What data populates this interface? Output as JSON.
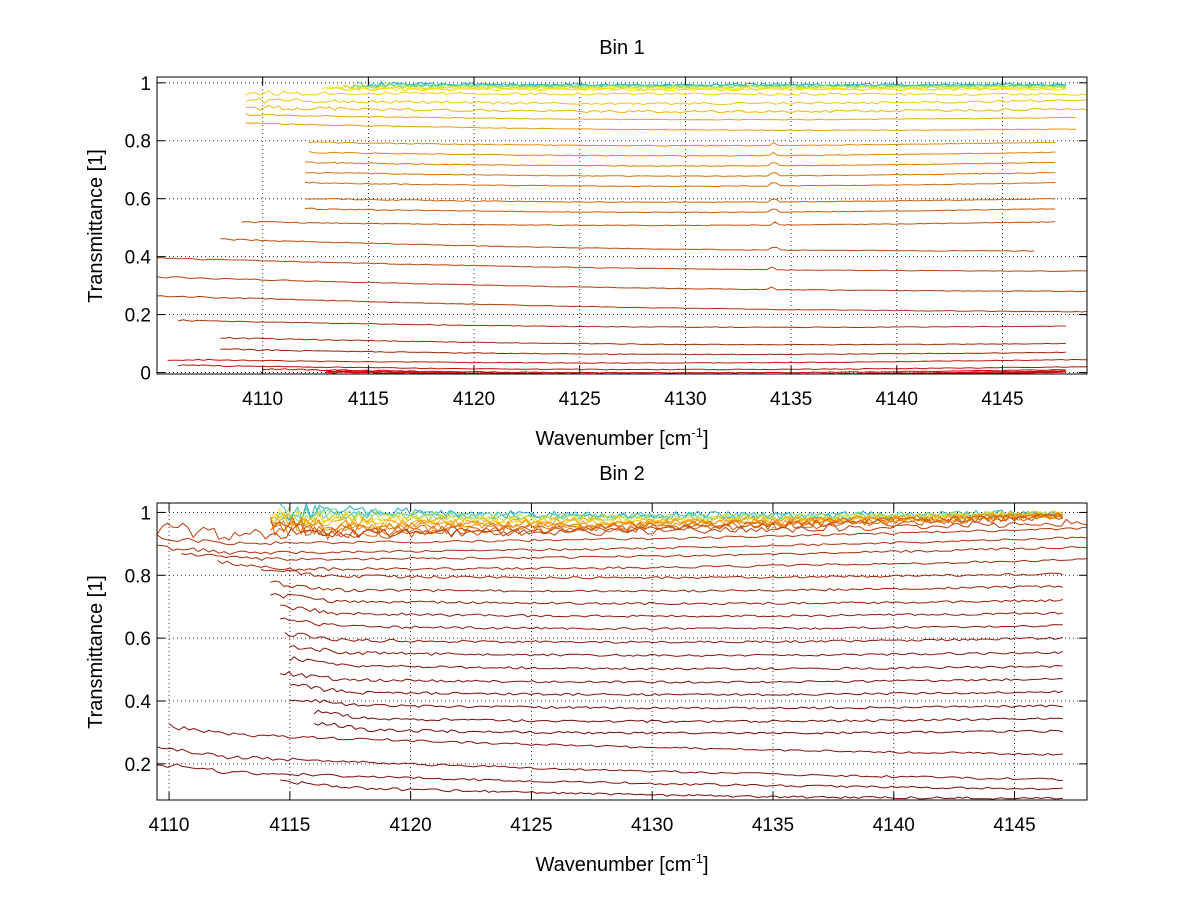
{
  "chart_data": [
    {
      "type": "line",
      "title": "Bin 1",
      "xlabel": "Wavenumber [cm",
      "xlabel_sup": "-1",
      "xlabel_end": "]",
      "ylabel": "Transmittance [1]",
      "xlim": [
        4105,
        4149
      ],
      "ylim": [
        -0.005,
        1.02
      ],
      "xticks": [
        4110,
        4115,
        4120,
        4125,
        4130,
        4135,
        4140,
        4145
      ],
      "yticks": [
        0,
        0.2,
        0.4,
        0.6,
        0.8,
        1
      ],
      "ytick_labels": [
        "0",
        "0.2",
        "0.4",
        "0.6",
        "0.8",
        "1"
      ],
      "grid": true,
      "curve_shape": "flat",
      "noise_scale": 0.0012,
      "spike_at": 4134.2,
      "series": [
        {
          "x_start": 4114.5,
          "x_end": 4148,
          "y_left": 0.995,
          "y_right": 0.995,
          "color": "#1fa9d6"
        },
        {
          "x_start": 4114.5,
          "x_end": 4148,
          "y_left": 0.993,
          "y_right": 0.993,
          "color": "#22c8b8"
        },
        {
          "x_start": 4114.2,
          "x_end": 4148,
          "y_left": 0.99,
          "y_right": 0.99,
          "color": "#5fd678"
        },
        {
          "x_start": 4113.8,
          "x_end": 4148,
          "y_left": 0.987,
          "y_right": 0.987,
          "color": "#a6e04a"
        },
        {
          "x_start": 4113.5,
          "x_end": 4148,
          "y_left": 0.984,
          "y_right": 0.984,
          "color": "#d8e832"
        },
        {
          "x_start": 4113.0,
          "x_end": 4148,
          "y_left": 0.981,
          "y_right": 0.981,
          "color": "#f2ea1e"
        },
        {
          "x_start": 4112.8,
          "x_end": 4148,
          "y_left": 0.978,
          "y_right": 0.978,
          "color": "#f5de16"
        },
        {
          "x_start": 4109.2,
          "x_end": 4149,
          "y_left": 0.965,
          "y_right": 0.96,
          "color": "#f7cd12"
        },
        {
          "x_start": 4109.2,
          "x_end": 4149,
          "y_left": 0.94,
          "y_right": 0.94,
          "color": "#f5c010"
        },
        {
          "x_start": 4109.2,
          "x_end": 4149,
          "y_left": 0.915,
          "y_right": 0.91,
          "color": "#f2b20e"
        },
        {
          "x_start": 4109.2,
          "x_end": 4148.5,
          "y_left": 0.89,
          "y_right": 0.88,
          "color": "#efa50c"
        },
        {
          "x_start": 4109.2,
          "x_end": 4148.5,
          "y_left": 0.86,
          "y_right": 0.84,
          "color": "#eb980b"
        },
        {
          "x_start": 4112.2,
          "x_end": 4147.5,
          "y_left": 0.795,
          "y_right": 0.795,
          "color": "#e68d0a"
        },
        {
          "x_start": 4112.2,
          "x_end": 4147.5,
          "y_left": 0.76,
          "y_right": 0.76,
          "color": "#e18309"
        },
        {
          "x_start": 4112.0,
          "x_end": 4147.5,
          "y_left": 0.725,
          "y_right": 0.725,
          "color": "#dc7a08"
        },
        {
          "x_start": 4112.0,
          "x_end": 4147.5,
          "y_left": 0.69,
          "y_right": 0.69,
          "color": "#d77208"
        },
        {
          "x_start": 4112.0,
          "x_end": 4147.5,
          "y_left": 0.655,
          "y_right": 0.655,
          "color": "#d26a08"
        },
        {
          "x_start": 4112.0,
          "x_end": 4147.5,
          "y_left": 0.6,
          "y_right": 0.6,
          "color": "#cd6208"
        },
        {
          "x_start": 4112.0,
          "x_end": 4147.5,
          "y_left": 0.565,
          "y_right": 0.565,
          "color": "#c85a08"
        },
        {
          "x_start": 4109.0,
          "x_end": 4147.5,
          "y_left": 0.52,
          "y_right": 0.52,
          "color": "#c35308"
        },
        {
          "x_start": 4108.0,
          "x_end": 4146.5,
          "y_left": 0.46,
          "y_right": 0.42,
          "color": "#be4c08"
        },
        {
          "x_start": 4105.0,
          "x_end": 4149,
          "y_left": 0.395,
          "y_right": 0.35,
          "color": "#b84508"
        },
        {
          "x_start": 4105.0,
          "x_end": 4149,
          "y_left": 0.33,
          "y_right": 0.28,
          "color": "#b33e08"
        },
        {
          "x_start": 4105.0,
          "x_end": 4149,
          "y_left": 0.265,
          "y_right": 0.21,
          "color": "#ae3808"
        },
        {
          "x_start": 4106.0,
          "x_end": 4148,
          "y_left": 0.18,
          "y_right": 0.16,
          "color": "#a83208"
        },
        {
          "x_start": 4108.0,
          "x_end": 4148,
          "y_left": 0.12,
          "y_right": 0.1,
          "color": "#a22c08"
        },
        {
          "x_start": 4108.0,
          "x_end": 4148,
          "y_left": 0.08,
          "y_right": 0.07,
          "color": "#9c2608"
        },
        {
          "x_start": 4105.5,
          "x_end": 4149,
          "y_left": 0.045,
          "y_right": 0.045,
          "color": "#b81a0a"
        },
        {
          "x_start": 4106.0,
          "x_end": 4149,
          "y_left": 0.025,
          "y_right": 0.02,
          "color": "#c0120a"
        },
        {
          "x_start": 4110.0,
          "x_end": 4148,
          "y_left": 0.012,
          "y_right": 0.01,
          "color": "#c80c0a"
        },
        {
          "x_start": 4113.0,
          "x_end": 4148,
          "y_left": 0.006,
          "y_right": 0.006,
          "color": "#cc0808"
        },
        {
          "x_start": 4113.0,
          "x_end": 4148,
          "y_left": 0.003,
          "y_right": 0.003,
          "color": "#cf0606"
        },
        {
          "x_start": 4113.0,
          "x_end": 4148,
          "y_left": 0.001,
          "y_right": 0.001,
          "color": "#d20404"
        }
      ]
    },
    {
      "type": "line",
      "title": "Bin 2",
      "xlabel": "Wavenumber [cm",
      "xlabel_sup": "-1",
      "xlabel_end": "]",
      "ylabel": "Transmittance [1]",
      "xlim": [
        4109.5,
        4148
      ],
      "ylim": [
        0.085,
        1.03
      ],
      "xticks": [
        4110,
        4115,
        4120,
        4125,
        4130,
        4135,
        4140,
        4145
      ],
      "yticks": [
        0.2,
        0.4,
        0.6,
        0.8,
        1
      ],
      "ytick_labels": [
        "0.2",
        "0.4",
        "0.6",
        "0.8",
        "1"
      ],
      "grid": true,
      "curve_shape": "bowl",
      "noise_scale": 0.0035,
      "spike_at": 0,
      "series": [
        {
          "x_start": 4114.6,
          "x_end": 4147,
          "y_left": 1.005,
          "y_right": 0.998,
          "color": "#1fa9d6"
        },
        {
          "x_start": 4114.6,
          "x_end": 4147,
          "y_left": 1.0,
          "y_right": 0.997,
          "color": "#3cc0c2"
        },
        {
          "x_start": 4114.4,
          "x_end": 4147,
          "y_left": 0.995,
          "y_right": 0.996,
          "color": "#72d490"
        },
        {
          "x_start": 4114.4,
          "x_end": 4147,
          "y_left": 0.99,
          "y_right": 0.995,
          "color": "#b6e05a"
        },
        {
          "x_start": 4114.2,
          "x_end": 4147,
          "y_left": 0.985,
          "y_right": 0.994,
          "color": "#eede2a"
        },
        {
          "x_start": 4114.2,
          "x_end": 4147,
          "y_left": 0.978,
          "y_right": 0.993,
          "color": "#f8c418"
        },
        {
          "x_start": 4114.2,
          "x_end": 4147,
          "y_left": 0.97,
          "y_right": 0.992,
          "color": "#f6aa12"
        },
        {
          "x_start": 4114.2,
          "x_end": 4147,
          "y_left": 0.962,
          "y_right": 0.991,
          "color": "#f2960e"
        },
        {
          "x_start": 4114.2,
          "x_end": 4147,
          "y_left": 0.954,
          "y_right": 0.99,
          "color": "#ea840c"
        },
        {
          "x_start": 4114.2,
          "x_end": 4147,
          "y_left": 0.946,
          "y_right": 0.989,
          "color": "#e0720a"
        },
        {
          "x_start": 4114.2,
          "x_end": 4147,
          "y_left": 0.938,
          "y_right": 0.988,
          "color": "#d56208"
        },
        {
          "x_start": 4114.2,
          "x_end": 4147,
          "y_left": 0.93,
          "y_right": 0.986,
          "color": "#c95406"
        },
        {
          "x_start": 4109.5,
          "x_end": 4148,
          "y_left": 0.93,
          "y_right": 0.97,
          "color": "#bf3a08"
        },
        {
          "x_start": 4109.5,
          "x_end": 4148,
          "y_left": 0.9,
          "y_right": 0.95,
          "color": "#b83408"
        },
        {
          "x_start": 4109.5,
          "x_end": 4148,
          "y_left": 0.87,
          "y_right": 0.92,
          "color": "#b22e08"
        },
        {
          "x_start": 4110.5,
          "x_end": 4148,
          "y_left": 0.85,
          "y_right": 0.89,
          "color": "#ac2a08"
        },
        {
          "x_start": 4112.0,
          "x_end": 4148,
          "y_left": 0.82,
          "y_right": 0.85,
          "color": "#a82608"
        },
        {
          "x_start": 4113.8,
          "x_end": 4147,
          "y_left": 0.8,
          "y_right": 0.805,
          "color": "#a42208"
        },
        {
          "x_start": 4114.2,
          "x_end": 4147,
          "y_left": 0.755,
          "y_right": 0.765,
          "color": "#a01f08"
        },
        {
          "x_start": 4114.2,
          "x_end": 4147,
          "y_left": 0.72,
          "y_right": 0.72,
          "color": "#9c1c08"
        },
        {
          "x_start": 4114.6,
          "x_end": 4147,
          "y_left": 0.68,
          "y_right": 0.68,
          "color": "#981a08"
        },
        {
          "x_start": 4114.6,
          "x_end": 4147,
          "y_left": 0.64,
          "y_right": 0.64,
          "color": "#941808"
        },
        {
          "x_start": 4114.8,
          "x_end": 4147,
          "y_left": 0.595,
          "y_right": 0.6,
          "color": "#901608"
        },
        {
          "x_start": 4115.0,
          "x_end": 4147,
          "y_left": 0.555,
          "y_right": 0.555,
          "color": "#8c1408"
        },
        {
          "x_start": 4115.0,
          "x_end": 4147,
          "y_left": 0.515,
          "y_right": 0.51,
          "color": "#881208"
        },
        {
          "x_start": 4114.6,
          "x_end": 4147,
          "y_left": 0.47,
          "y_right": 0.47,
          "color": "#841008"
        },
        {
          "x_start": 4115.0,
          "x_end": 4147,
          "y_left": 0.43,
          "y_right": 0.43,
          "color": "#800e08"
        },
        {
          "x_start": 4115.0,
          "x_end": 4147,
          "y_left": 0.39,
          "y_right": 0.385,
          "color": "#7c0c08"
        },
        {
          "x_start": 4116.0,
          "x_end": 4147,
          "y_left": 0.345,
          "y_right": 0.345,
          "color": "#780a08"
        },
        {
          "x_start": 4116.0,
          "x_end": 4147,
          "y_left": 0.31,
          "y_right": 0.305,
          "color": "#740808"
        },
        {
          "x_start": 4110.0,
          "x_end": 4147,
          "y_left": 0.3,
          "y_right": 0.23,
          "color": "#8a1208"
        },
        {
          "x_start": 4109.5,
          "x_end": 4147,
          "y_left": 0.23,
          "y_right": 0.15,
          "color": "#861008"
        },
        {
          "x_start": 4109.5,
          "x_end": 4147,
          "y_left": 0.18,
          "y_right": 0.12,
          "color": "#820e08"
        },
        {
          "x_start": 4114.6,
          "x_end": 4147,
          "y_left": 0.13,
          "y_right": 0.09,
          "color": "#7e0c08"
        }
      ]
    }
  ]
}
